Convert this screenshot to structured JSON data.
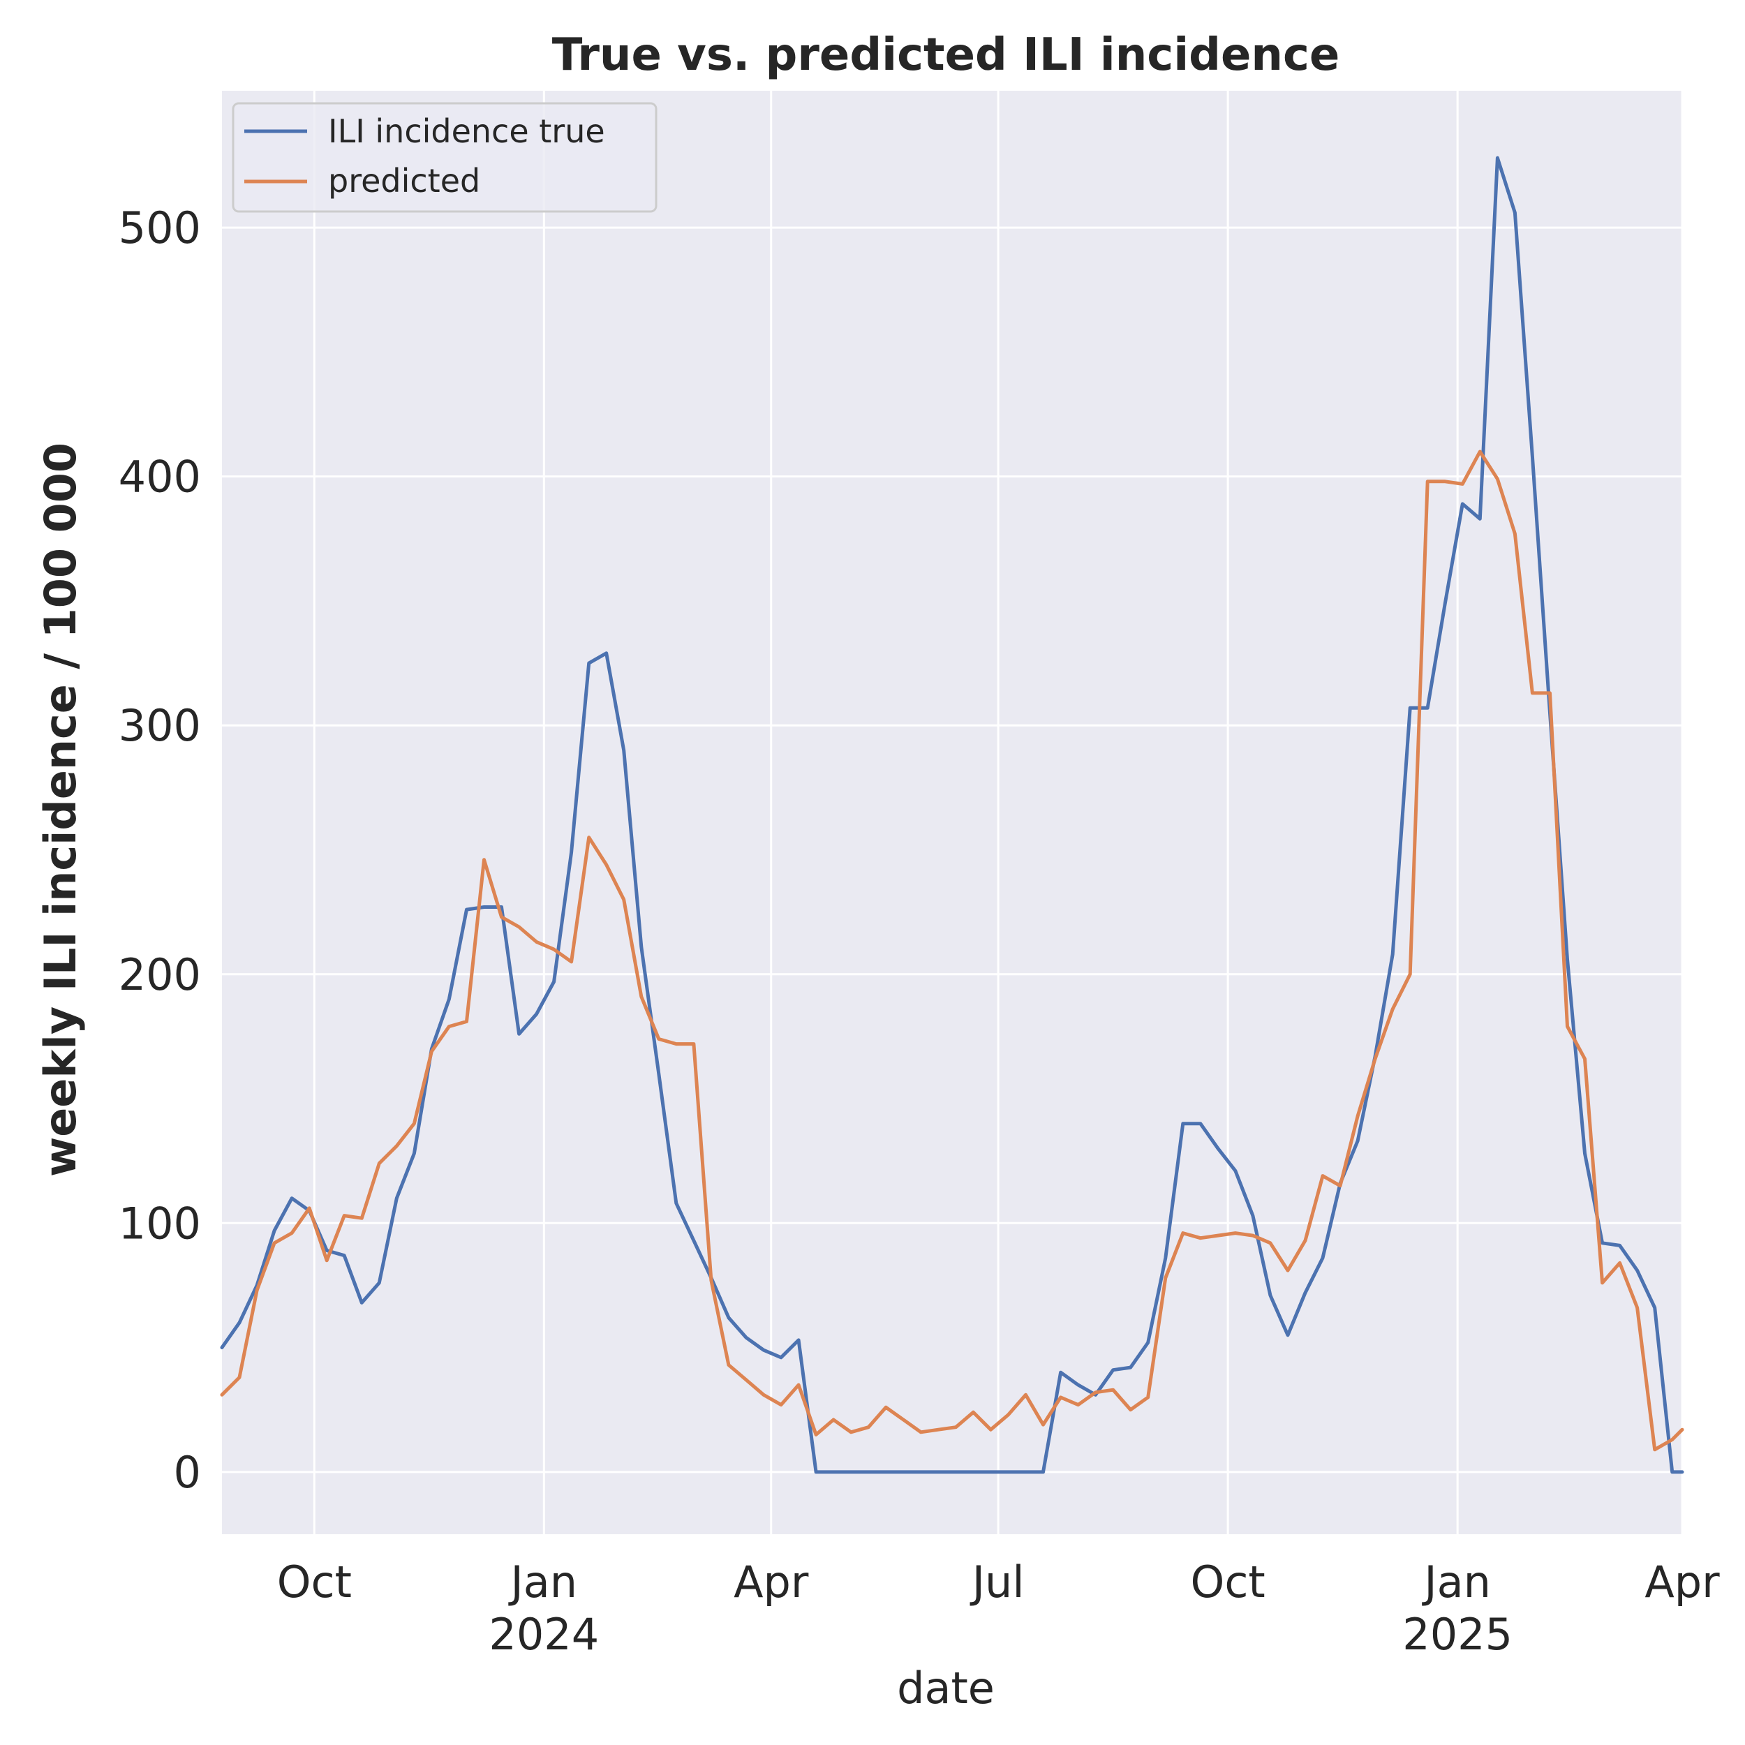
{
  "chart_data": {
    "type": "line",
    "title": "True vs. predicted ILI incidence",
    "xlabel": "date",
    "ylabel": "weekly ILI incidence / 100 000",
    "xlim": [
      "2023-08-25",
      "2025-04-01"
    ],
    "ylim": [
      -25,
      555
    ],
    "x_ticks": [
      {
        "date": "2023-10-01",
        "label": "Oct",
        "year": ""
      },
      {
        "date": "2024-01-01",
        "label": "Jan",
        "year": "2024"
      },
      {
        "date": "2024-04-01",
        "label": "Apr",
        "year": ""
      },
      {
        "date": "2024-07-01",
        "label": "Jul",
        "year": ""
      },
      {
        "date": "2024-10-01",
        "label": "Oct",
        "year": ""
      },
      {
        "date": "2025-01-01",
        "label": "Jan",
        "year": "2025"
      },
      {
        "date": "2025-04-01",
        "label": "Apr",
        "year": ""
      }
    ],
    "y_ticks": [
      0,
      100,
      200,
      300,
      400,
      500
    ],
    "grid": true,
    "background": "#eaeaf2",
    "legend": {
      "position": "top-left"
    },
    "x": [
      "2023-08-25",
      "2023-09-01",
      "2023-09-08",
      "2023-09-15",
      "2023-09-22",
      "2023-09-29",
      "2023-10-06",
      "2023-10-13",
      "2023-10-20",
      "2023-10-27",
      "2023-11-03",
      "2023-11-10",
      "2023-11-17",
      "2023-11-24",
      "2023-12-01",
      "2023-12-08",
      "2023-12-15",
      "2023-12-22",
      "2023-12-29",
      "2024-01-05",
      "2024-01-12",
      "2024-01-19",
      "2024-01-26",
      "2024-02-02",
      "2024-02-09",
      "2024-02-16",
      "2024-02-23",
      "2024-03-01",
      "2024-03-08",
      "2024-03-15",
      "2024-03-22",
      "2024-03-29",
      "2024-04-05",
      "2024-04-12",
      "2024-04-19",
      "2024-04-26",
      "2024-05-03",
      "2024-05-10",
      "2024-05-17",
      "2024-05-24",
      "2024-05-31",
      "2024-06-07",
      "2024-06-14",
      "2024-06-21",
      "2024-06-28",
      "2024-07-05",
      "2024-07-12",
      "2024-07-19",
      "2024-07-26",
      "2024-08-02",
      "2024-08-09",
      "2024-08-16",
      "2024-08-23",
      "2024-08-30",
      "2024-09-06",
      "2024-09-13",
      "2024-09-20",
      "2024-09-27",
      "2024-10-04",
      "2024-10-11",
      "2024-10-18",
      "2024-10-25",
      "2024-11-01",
      "2024-11-08",
      "2024-11-15",
      "2024-11-22",
      "2024-11-29",
      "2024-12-06",
      "2024-12-13",
      "2024-12-20",
      "2024-12-27",
      "2025-01-03",
      "2025-01-10",
      "2025-01-17",
      "2025-01-24",
      "2025-01-31",
      "2025-02-07",
      "2025-02-14",
      "2025-02-21",
      "2025-02-28",
      "2025-03-07",
      "2025-03-14",
      "2025-03-21",
      "2025-03-28",
      "2025-04-01"
    ],
    "series": [
      {
        "name": "ILI incidence true",
        "color": "#4c72b0",
        "values": [
          50,
          60,
          75,
          97,
          110,
          105,
          89,
          87,
          68,
          76,
          110,
          128,
          170,
          190,
          226,
          227,
          227,
          176,
          184,
          197,
          249,
          325,
          329,
          290,
          211,
          160,
          108,
          93,
          78,
          62,
          54,
          49,
          46,
          53,
          0,
          0,
          0,
          0,
          0,
          0,
          0,
          0,
          0,
          0,
          0,
          0,
          0,
          0,
          40,
          35,
          31,
          41,
          42,
          52,
          86,
          140,
          140,
          130,
          121,
          103,
          71,
          55,
          72,
          86,
          116,
          133,
          167,
          208,
          307,
          307,
          349,
          389,
          383,
          528,
          506,
          408,
          305,
          206,
          128,
          92,
          91,
          81,
          66,
          0,
          0
        ]
      },
      {
        "name": "predicted",
        "color": "#dd8452",
        "values": [
          31,
          38,
          73,
          92,
          96,
          106,
          85,
          103,
          102,
          124,
          131,
          140,
          169,
          179,
          181,
          246,
          223,
          219,
          213,
          210,
          205,
          255,
          244,
          230,
          191,
          174,
          172,
          172,
          77,
          43,
          37,
          31,
          27,
          35,
          15,
          21,
          16,
          18,
          26,
          21,
          16,
          17,
          18,
          24,
          17,
          23,
          31,
          19,
          30,
          27,
          32,
          33,
          25,
          30,
          78,
          96,
          94,
          95,
          96,
          95,
          92,
          81,
          93,
          119,
          115,
          143,
          166,
          186,
          200,
          398,
          398,
          397,
          410,
          399,
          377,
          313,
          313,
          179,
          166,
          76,
          84,
          66,
          9,
          13,
          17
        ]
      }
    ]
  }
}
